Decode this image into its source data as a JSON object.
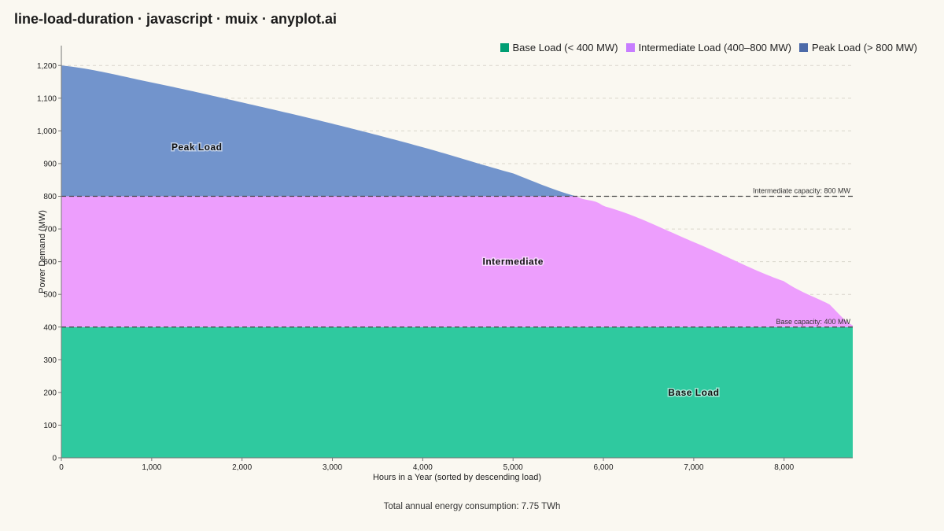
{
  "page": {
    "title": "line-load-duration · javascript · muix · anyplot.ai",
    "footer": "Total annual energy consumption: 7.75 TWh"
  },
  "chart_data": {
    "type": "area",
    "xlabel": "Hours in a Year (sorted by descending load)",
    "ylabel": "Power Demand (MW)",
    "xlim": [
      0,
      8760
    ],
    "ylim": [
      0,
      1280
    ],
    "x_ticks": [
      "0",
      "1,000",
      "2,000",
      "3,000",
      "4,000",
      "5,000",
      "6,000",
      "7,000",
      "8,000"
    ],
    "x_tick_values": [
      0,
      1000,
      2000,
      3000,
      4000,
      5000,
      6000,
      7000,
      8000
    ],
    "y_ticks": [
      "0",
      "100",
      "200",
      "300",
      "400",
      "500",
      "600",
      "700",
      "800",
      "900",
      "1,000",
      "1,100",
      "1,200"
    ],
    "y_tick_values": [
      0,
      100,
      200,
      300,
      400,
      500,
      600,
      700,
      800,
      900,
      1000,
      1100,
      1200
    ],
    "grid": "horizontal-dashed",
    "legend_position": "top-right",
    "load_curve": {
      "x": [
        0,
        1000,
        2000,
        3000,
        4000,
        5000,
        5700,
        6000,
        7000,
        8000,
        8500,
        8760
      ],
      "y": [
        1200,
        1148,
        1087,
        1022,
        950,
        870,
        800,
        770,
        660,
        540,
        470,
        405
      ]
    },
    "series": [
      {
        "name": "Base Load (< 400 MW)",
        "color": "#009e73",
        "fill": "#2fc99f",
        "lower": 0,
        "upper": 400
      },
      {
        "name": "Intermediate Load (400–800 MW)",
        "color": "#c77dff",
        "fill": "#ed9efd",
        "lower": 400,
        "upper": 800
      },
      {
        "name": "Peak Load (> 800 MW)",
        "color": "#4c6aa8",
        "fill": "#7294cc",
        "lower": 800,
        "upper": null
      }
    ],
    "region_labels": [
      {
        "text": "Peak Load",
        "x": 1500,
        "y": 950
      },
      {
        "text": "Intermediate",
        "x": 5000,
        "y": 600
      },
      {
        "text": "Base Load",
        "x": 7000,
        "y": 200
      }
    ],
    "reference_lines": [
      {
        "value": 800,
        "label": "Intermediate capacity: 800 MW"
      },
      {
        "value": 400,
        "label": "Base capacity: 400 MW"
      }
    ]
  }
}
